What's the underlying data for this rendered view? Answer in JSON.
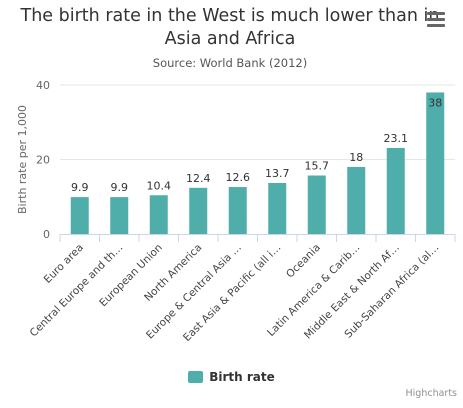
{
  "title": "The birth rate in the West is much lower than in Asia and Africa",
  "subtitle": "Source: World Bank (2012)",
  "menu_icon": "hamburger-icon",
  "credits": "Highcharts",
  "chart_data": {
    "type": "bar",
    "title": "The birth rate in the West is much lower than in Asia and Africa",
    "subtitle": "Source: World Bank (2012)",
    "xlabel": "",
    "ylabel": "Birth rate per 1,000",
    "ylim": [
      0,
      40
    ],
    "yticks": [
      0,
      20,
      40
    ],
    "grid": true,
    "legend_position": "bottom",
    "color": "#4fadaa",
    "categories": [
      "Euro area",
      "Central Europe and th…",
      "European Union",
      "North America",
      "Europe & Central Asia …",
      "East Asia & Pacific (all i…",
      "Oceania",
      "Latin America & Carib…",
      "Middle East & North Af…",
      "Sub-Saharan Africa (al…"
    ],
    "series": [
      {
        "name": "Birth rate",
        "values": [
          9.9,
          9.9,
          10.4,
          12.4,
          12.6,
          13.7,
          15.7,
          18,
          23.1,
          38
        ]
      }
    ]
  }
}
